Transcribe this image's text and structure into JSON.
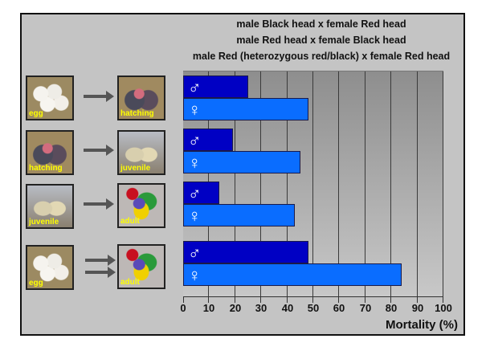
{
  "chart_data": {
    "type": "bar",
    "orientation": "horizontal",
    "titles": [
      "male Black head x female Red head",
      "male Red head x female Black head",
      "male Red (heterozygous red/black) x female Red head"
    ],
    "categories": [
      "egg → hatching",
      "hatching → juvenile",
      "juvenile → adult",
      "egg → adult"
    ],
    "series": [
      {
        "name": "male",
        "symbol": "♂",
        "color": "#0000c4",
        "values": [
          25,
          19,
          14,
          48
        ]
      },
      {
        "name": "female",
        "symbol": "♀",
        "color": "#0a6dff",
        "values": [
          48,
          45,
          43,
          84
        ]
      }
    ],
    "xlabel": "Mortality (%)",
    "xlim": [
      0,
      100
    ],
    "xticks": [
      0,
      10,
      20,
      30,
      40,
      50,
      60,
      70,
      80,
      90,
      100
    ],
    "grid": "vertical",
    "legend": "none"
  },
  "stages": [
    {
      "from": "egg",
      "to": "hatching"
    },
    {
      "from": "hatching",
      "to": "juvenile"
    },
    {
      "from": "juvenile",
      "to": "adult"
    },
    {
      "from": "egg",
      "to": "adult"
    }
  ],
  "symbols": {
    "male": "♂",
    "female": "♀"
  }
}
